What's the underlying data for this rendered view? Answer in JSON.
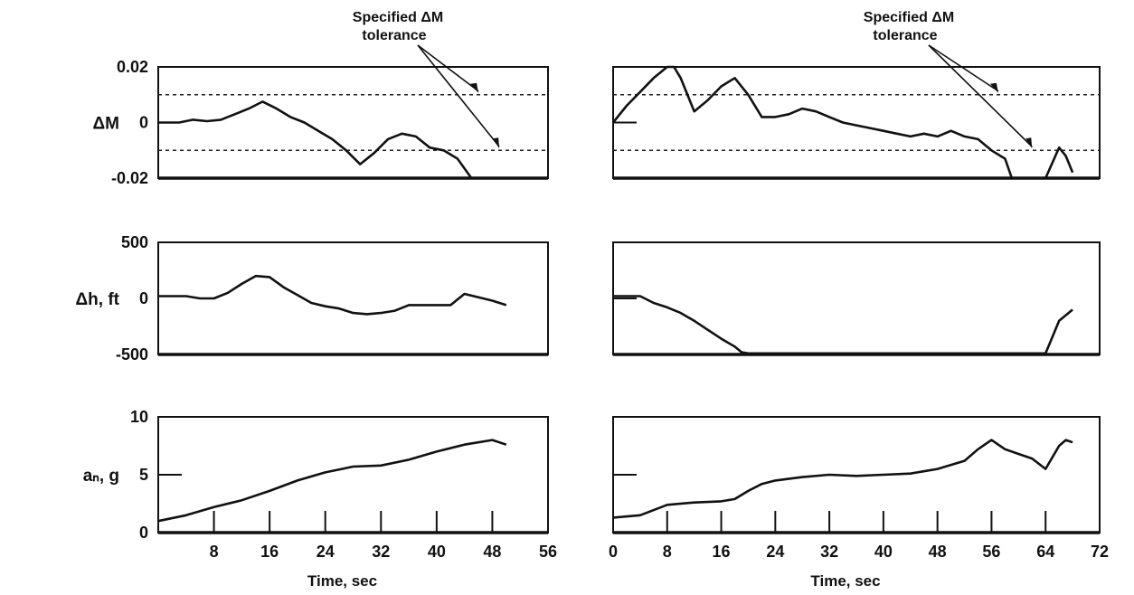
{
  "chart_data": [
    {
      "type": "line",
      "columns": "left",
      "xlabel": "Time, sec",
      "xlim": [
        0,
        56
      ],
      "xticks": [
        "8",
        "16",
        "24",
        "32",
        "40",
        "48",
        "56"
      ],
      "panels": [
        {
          "ylabel": "ΔM",
          "ylim": [
            -0.02,
            0.02
          ],
          "yticks": [
            "0.02",
            "0",
            "-0.02"
          ],
          "tolerance": [
            0.01,
            -0.01
          ],
          "annotation": [
            "Specified ΔM",
            "tolerance"
          ],
          "x": [
            0,
            3,
            5,
            7,
            9,
            11,
            13,
            15,
            17,
            19,
            21,
            23,
            25,
            27,
            29,
            31,
            33,
            35,
            37,
            39,
            41,
            43,
            45
          ],
          "y": [
            0.0,
            0.0,
            0.001,
            0.0005,
            0.001,
            0.003,
            0.005,
            0.0075,
            0.005,
            0.002,
            0.0,
            -0.003,
            -0.006,
            -0.01,
            -0.015,
            -0.011,
            -0.006,
            -0.004,
            -0.005,
            -0.009,
            -0.01,
            -0.013,
            -0.02
          ]
        },
        {
          "ylabel": "Δh, ft",
          "ylim": [
            -500,
            500
          ],
          "yticks": [
            "500",
            "0",
            "-500"
          ],
          "x": [
            0,
            4,
            6,
            8,
            10,
            12,
            14,
            16,
            18,
            20,
            22,
            24,
            26,
            28,
            30,
            32,
            34,
            36,
            38,
            40,
            42,
            44,
            46,
            48,
            50
          ],
          "y": [
            20,
            20,
            0,
            0,
            50,
            130,
            200,
            190,
            100,
            30,
            -40,
            -70,
            -90,
            -130,
            -140,
            -130,
            -110,
            -60,
            -60,
            -60,
            -60,
            40,
            10,
            -20,
            -60
          ]
        },
        {
          "ylabel": "aₙ, g",
          "ylim": [
            0,
            10
          ],
          "yticks": [
            "10",
            "5",
            "0"
          ],
          "x": [
            0,
            4,
            8,
            12,
            16,
            20,
            24,
            28,
            32,
            36,
            40,
            44,
            48,
            50
          ],
          "y": [
            1.0,
            1.5,
            2.2,
            2.8,
            3.6,
            4.5,
            5.2,
            5.7,
            5.8,
            6.3,
            7.0,
            7.6,
            8.0,
            7.6
          ]
        }
      ]
    },
    {
      "type": "line",
      "columns": "right",
      "xlabel": "Time, sec",
      "xlim": [
        0,
        72
      ],
      "xticks": [
        "0",
        "8",
        "16",
        "24",
        "32",
        "40",
        "48",
        "56",
        "64",
        "72"
      ],
      "panels": [
        {
          "ylabel": "ΔM",
          "ylim": [
            -0.02,
            0.02
          ],
          "tolerance": [
            0.01,
            -0.01
          ],
          "annotation": [
            "Specified ΔM",
            "tolerance"
          ],
          "x": [
            0,
            2,
            4,
            6,
            8,
            9,
            10,
            12,
            14,
            16,
            18,
            20,
            22,
            24,
            26,
            28,
            30,
            32,
            34,
            36,
            38,
            40,
            42,
            44,
            46,
            48,
            50,
            52,
            54,
            56,
            58,
            59
          ],
          "y": [
            0.0,
            0.006,
            0.011,
            0.016,
            0.02,
            0.02,
            0.016,
            0.004,
            0.008,
            0.013,
            0.016,
            0.01,
            0.002,
            0.002,
            0.003,
            0.005,
            0.004,
            0.002,
            0.0,
            -0.001,
            -0.002,
            -0.003,
            -0.004,
            -0.005,
            -0.004,
            -0.005,
            -0.003,
            -0.005,
            -0.006,
            -0.01,
            -0.013,
            -0.02
          ],
          "x2": [
            64,
            66,
            67,
            68
          ],
          "y2": [
            -0.02,
            -0.009,
            -0.012,
            -0.018
          ]
        },
        {
          "ylabel": "Δh, ft",
          "ylim": [
            -500,
            500
          ],
          "x": [
            0,
            4,
            6,
            8,
            10,
            12,
            14,
            16,
            18,
            19,
            20,
            64,
            66,
            68
          ],
          "y": [
            20,
            20,
            -40,
            -80,
            -130,
            -200,
            -280,
            -360,
            -430,
            -480,
            -490,
            -490,
            -200,
            -100
          ]
        },
        {
          "ylabel": "aₙ, g",
          "ylim": [
            0,
            10
          ],
          "x": [
            0,
            4,
            8,
            12,
            16,
            18,
            20,
            22,
            24,
            28,
            32,
            36,
            40,
            44,
            48,
            52,
            54,
            56,
            58,
            60,
            62,
            64,
            66,
            67,
            68
          ],
          "y": [
            1.3,
            1.5,
            2.4,
            2.6,
            2.7,
            2.9,
            3.6,
            4.2,
            4.5,
            4.8,
            5.0,
            4.9,
            5.0,
            5.1,
            5.5,
            6.2,
            7.2,
            8.0,
            7.2,
            6.8,
            6.4,
            5.5,
            7.5,
            8.0,
            7.8
          ]
        }
      ]
    }
  ]
}
